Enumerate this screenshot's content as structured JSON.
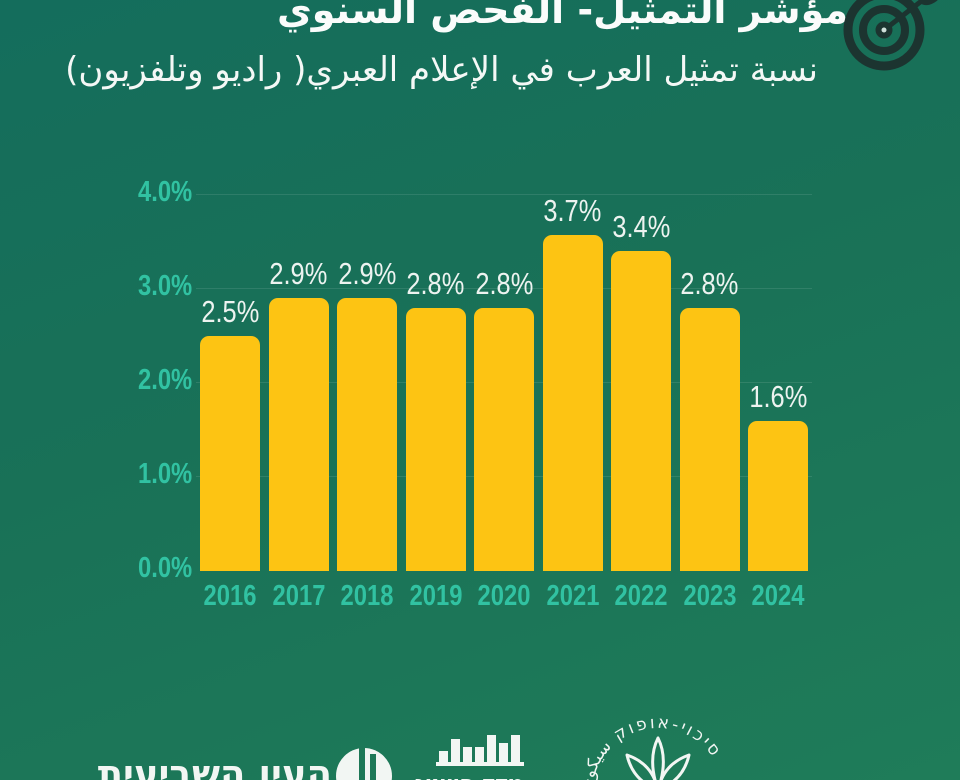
{
  "header": {
    "title": "مؤشر التمثيل- الفحص السنوي",
    "subtitle": "نسبة تمثيل العرب في الإعلام العبري( راديو وتلفزيون)"
  },
  "icons": {
    "target": "dartboard-with-arrow",
    "eye": "circle-eye-logo",
    "bars": "bar-chart-logo",
    "leaf": "plant-leaf-logo"
  },
  "chart_data": {
    "type": "bar",
    "categories": [
      "2016",
      "2017",
      "2018",
      "2019",
      "2020",
      "2021",
      "2022",
      "2023",
      "2024"
    ],
    "values": [
      2.5,
      2.9,
      2.9,
      2.8,
      2.8,
      3.7,
      3.4,
      2.8,
      1.6
    ],
    "value_labels": [
      "2.5%",
      "2.9%",
      "2.9%",
      "2.8%",
      "2.8%",
      "3.7%",
      "3.4%",
      "2.8%",
      "1.6%"
    ],
    "yticks": [
      "0.0%",
      "1.0%",
      "2.0%",
      "3.0%",
      "4.0%"
    ],
    "ylim": [
      0,
      4
    ],
    "grid": true,
    "legend": "none",
    "bar_color": "#FDC413",
    "axis_label_color": "#31C2A2",
    "value_label_color": "#EDF3F0"
  },
  "footer": {
    "logos": [
      {
        "name": "seventh-eye",
        "text": "העין השביעית"
      },
      {
        "name": "representation-index",
        "text": "מדד הייצוג"
      },
      {
        "name": "sikkuy-aufoq",
        "text": "סיכוי-אופוק سيكوي"
      }
    ]
  },
  "colors": {
    "background_top": "#146D5C",
    "background_bottom": "#1F7C59",
    "icon_dark": "#1C3430",
    "text_white": "#F2F6F3",
    "accent_teal": "#31C2A2",
    "bar_yellow": "#FDC413"
  }
}
